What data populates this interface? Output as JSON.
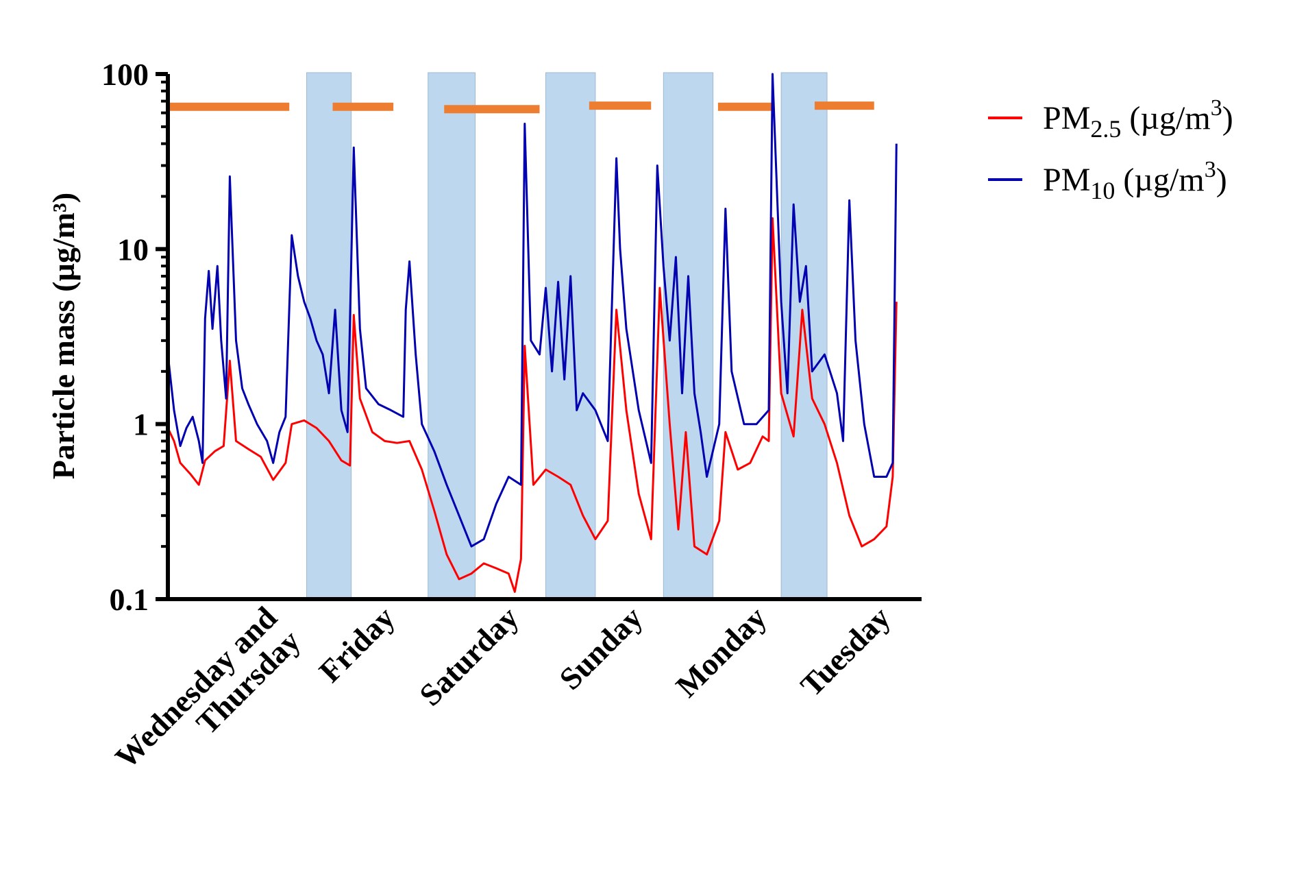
{
  "chart_data": {
    "type": "line",
    "ylabel": "Particle mass (µg/m³)",
    "yscale": "log",
    "ylim": [
      0.1,
      100
    ],
    "y_ticks": [
      "0.1",
      "1",
      "10",
      "100"
    ],
    "x_ticks": [
      "Wednesday and\nThursday",
      "Friday",
      "Saturday",
      "Sunday",
      "Monday",
      "Tuesday"
    ],
    "xlim": [
      0,
      6
    ],
    "grid": false,
    "legend_position": "top-right",
    "series": [
      {
        "name": "PM2.5 (µg/m3)",
        "color": "#ff0000",
        "points": [
          [
            0.0,
            0.95
          ],
          [
            0.05,
            0.8
          ],
          [
            0.1,
            0.6
          ],
          [
            0.18,
            0.52
          ],
          [
            0.25,
            0.45
          ],
          [
            0.3,
            0.62
          ],
          [
            0.38,
            0.7
          ],
          [
            0.45,
            0.75
          ],
          [
            0.5,
            2.3
          ],
          [
            0.55,
            0.8
          ],
          [
            0.65,
            0.72
          ],
          [
            0.75,
            0.65
          ],
          [
            0.85,
            0.48
          ],
          [
            0.95,
            0.6
          ],
          [
            1.0,
            1.0
          ],
          [
            1.1,
            1.05
          ],
          [
            1.2,
            0.95
          ],
          [
            1.3,
            0.8
          ],
          [
            1.4,
            0.62
          ],
          [
            1.47,
            0.58
          ],
          [
            1.5,
            4.2
          ],
          [
            1.55,
            1.4
          ],
          [
            1.65,
            0.9
          ],
          [
            1.75,
            0.8
          ],
          [
            1.85,
            0.78
          ],
          [
            1.95,
            0.8
          ],
          [
            2.05,
            0.55
          ],
          [
            2.15,
            0.32
          ],
          [
            2.25,
            0.18
          ],
          [
            2.35,
            0.13
          ],
          [
            2.45,
            0.14
          ],
          [
            2.55,
            0.16
          ],
          [
            2.65,
            0.15
          ],
          [
            2.75,
            0.14
          ],
          [
            2.8,
            0.11
          ],
          [
            2.85,
            0.17
          ],
          [
            2.88,
            2.8
          ],
          [
            2.95,
            0.45
          ],
          [
            3.05,
            0.55
          ],
          [
            3.15,
            0.5
          ],
          [
            3.25,
            0.45
          ],
          [
            3.35,
            0.3
          ],
          [
            3.45,
            0.22
          ],
          [
            3.55,
            0.28
          ],
          [
            3.62,
            4.5
          ],
          [
            3.7,
            1.2
          ],
          [
            3.8,
            0.4
          ],
          [
            3.9,
            0.22
          ],
          [
            3.97,
            6.0
          ],
          [
            4.05,
            1.0
          ],
          [
            4.12,
            0.25
          ],
          [
            4.18,
            0.9
          ],
          [
            4.25,
            0.2
          ],
          [
            4.35,
            0.18
          ],
          [
            4.45,
            0.28
          ],
          [
            4.5,
            0.9
          ],
          [
            4.6,
            0.55
          ],
          [
            4.7,
            0.6
          ],
          [
            4.8,
            0.85
          ],
          [
            4.85,
            0.8
          ],
          [
            4.88,
            15.0
          ],
          [
            4.95,
            1.5
          ],
          [
            5.05,
            0.85
          ],
          [
            5.12,
            4.5
          ],
          [
            5.2,
            1.4
          ],
          [
            5.3,
            1.0
          ],
          [
            5.4,
            0.6
          ],
          [
            5.5,
            0.3
          ],
          [
            5.6,
            0.2
          ],
          [
            5.7,
            0.22
          ],
          [
            5.8,
            0.26
          ],
          [
            5.85,
            0.5
          ],
          [
            5.88,
            5.0
          ]
        ]
      },
      {
        "name": "PM10 (µg/m3)",
        "color": "#0000b0",
        "points": [
          [
            0.0,
            2.5
          ],
          [
            0.05,
            1.2
          ],
          [
            0.1,
            0.75
          ],
          [
            0.15,
            0.95
          ],
          [
            0.2,
            1.1
          ],
          [
            0.25,
            0.8
          ],
          [
            0.28,
            0.6
          ],
          [
            0.3,
            4.0
          ],
          [
            0.33,
            7.5
          ],
          [
            0.36,
            3.5
          ],
          [
            0.4,
            8.0
          ],
          [
            0.43,
            3.0
          ],
          [
            0.47,
            1.4
          ],
          [
            0.5,
            26.0
          ],
          [
            0.55,
            3.0
          ],
          [
            0.6,
            1.6
          ],
          [
            0.65,
            1.3
          ],
          [
            0.72,
            1.0
          ],
          [
            0.8,
            0.8
          ],
          [
            0.85,
            0.6
          ],
          [
            0.9,
            0.9
          ],
          [
            0.95,
            1.1
          ],
          [
            1.0,
            12.0
          ],
          [
            1.05,
            7.0
          ],
          [
            1.1,
            5.0
          ],
          [
            1.15,
            4.0
          ],
          [
            1.2,
            3.0
          ],
          [
            1.25,
            2.5
          ],
          [
            1.3,
            1.5
          ],
          [
            1.35,
            4.5
          ],
          [
            1.4,
            1.2
          ],
          [
            1.45,
            0.9
          ],
          [
            1.5,
            38.0
          ],
          [
            1.55,
            3.5
          ],
          [
            1.6,
            1.6
          ],
          [
            1.7,
            1.3
          ],
          [
            1.8,
            1.2
          ],
          [
            1.9,
            1.1
          ],
          [
            1.92,
            4.5
          ],
          [
            1.95,
            8.5
          ],
          [
            2.0,
            2.5
          ],
          [
            2.05,
            1.0
          ],
          [
            2.15,
            0.7
          ],
          [
            2.25,
            0.45
          ],
          [
            2.35,
            0.3
          ],
          [
            2.45,
            0.2
          ],
          [
            2.55,
            0.22
          ],
          [
            2.65,
            0.35
          ],
          [
            2.75,
            0.5
          ],
          [
            2.85,
            0.45
          ],
          [
            2.88,
            52.0
          ],
          [
            2.93,
            3.0
          ],
          [
            3.0,
            2.5
          ],
          [
            3.05,
            6.0
          ],
          [
            3.1,
            2.0
          ],
          [
            3.15,
            6.5
          ],
          [
            3.2,
            1.8
          ],
          [
            3.25,
            7.0
          ],
          [
            3.3,
            1.2
          ],
          [
            3.35,
            1.5
          ],
          [
            3.45,
            1.2
          ],
          [
            3.55,
            0.8
          ],
          [
            3.62,
            33.0
          ],
          [
            3.65,
            10.0
          ],
          [
            3.7,
            3.5
          ],
          [
            3.8,
            1.2
          ],
          [
            3.9,
            0.6
          ],
          [
            3.95,
            30.0
          ],
          [
            4.0,
            8.0
          ],
          [
            4.05,
            3.0
          ],
          [
            4.1,
            9.0
          ],
          [
            4.15,
            1.5
          ],
          [
            4.2,
            7.0
          ],
          [
            4.25,
            1.5
          ],
          [
            4.3,
            0.9
          ],
          [
            4.35,
            0.5
          ],
          [
            4.45,
            1.0
          ],
          [
            4.5,
            17.0
          ],
          [
            4.55,
            2.0
          ],
          [
            4.65,
            1.0
          ],
          [
            4.75,
            1.0
          ],
          [
            4.85,
            1.2
          ],
          [
            4.88,
            100.0
          ],
          [
            4.95,
            5.0
          ],
          [
            5.0,
            1.5
          ],
          [
            5.05,
            18.0
          ],
          [
            5.1,
            5.0
          ],
          [
            5.15,
            8.0
          ],
          [
            5.2,
            2.0
          ],
          [
            5.3,
            2.5
          ],
          [
            5.4,
            1.5
          ],
          [
            5.45,
            0.8
          ],
          [
            5.5,
            19.0
          ],
          [
            5.55,
            3.0
          ],
          [
            5.62,
            1.0
          ],
          [
            5.7,
            0.5
          ],
          [
            5.8,
            0.5
          ],
          [
            5.85,
            0.6
          ],
          [
            5.88,
            40.0
          ]
        ]
      }
    ],
    "shaded_bands_x": [
      [
        1.12,
        1.48
      ],
      [
        2.1,
        2.48
      ],
      [
        3.05,
        3.45
      ],
      [
        4.0,
        4.4
      ],
      [
        4.95,
        5.32
      ]
    ],
    "orange_bars": [
      {
        "x": [
          0.0,
          0.98
        ],
        "y": 65
      },
      {
        "x": [
          1.33,
          1.82
        ],
        "y": 65
      },
      {
        "x": [
          2.23,
          3.0
        ],
        "y": 63
      },
      {
        "x": [
          3.4,
          3.9
        ],
        "y": 66
      },
      {
        "x": [
          4.44,
          4.88
        ],
        "y": 65
      },
      {
        "x": [
          5.22,
          5.7
        ],
        "y": 66
      }
    ],
    "band_color": "#bdd7ee",
    "orange_color": "#ed7d31"
  }
}
